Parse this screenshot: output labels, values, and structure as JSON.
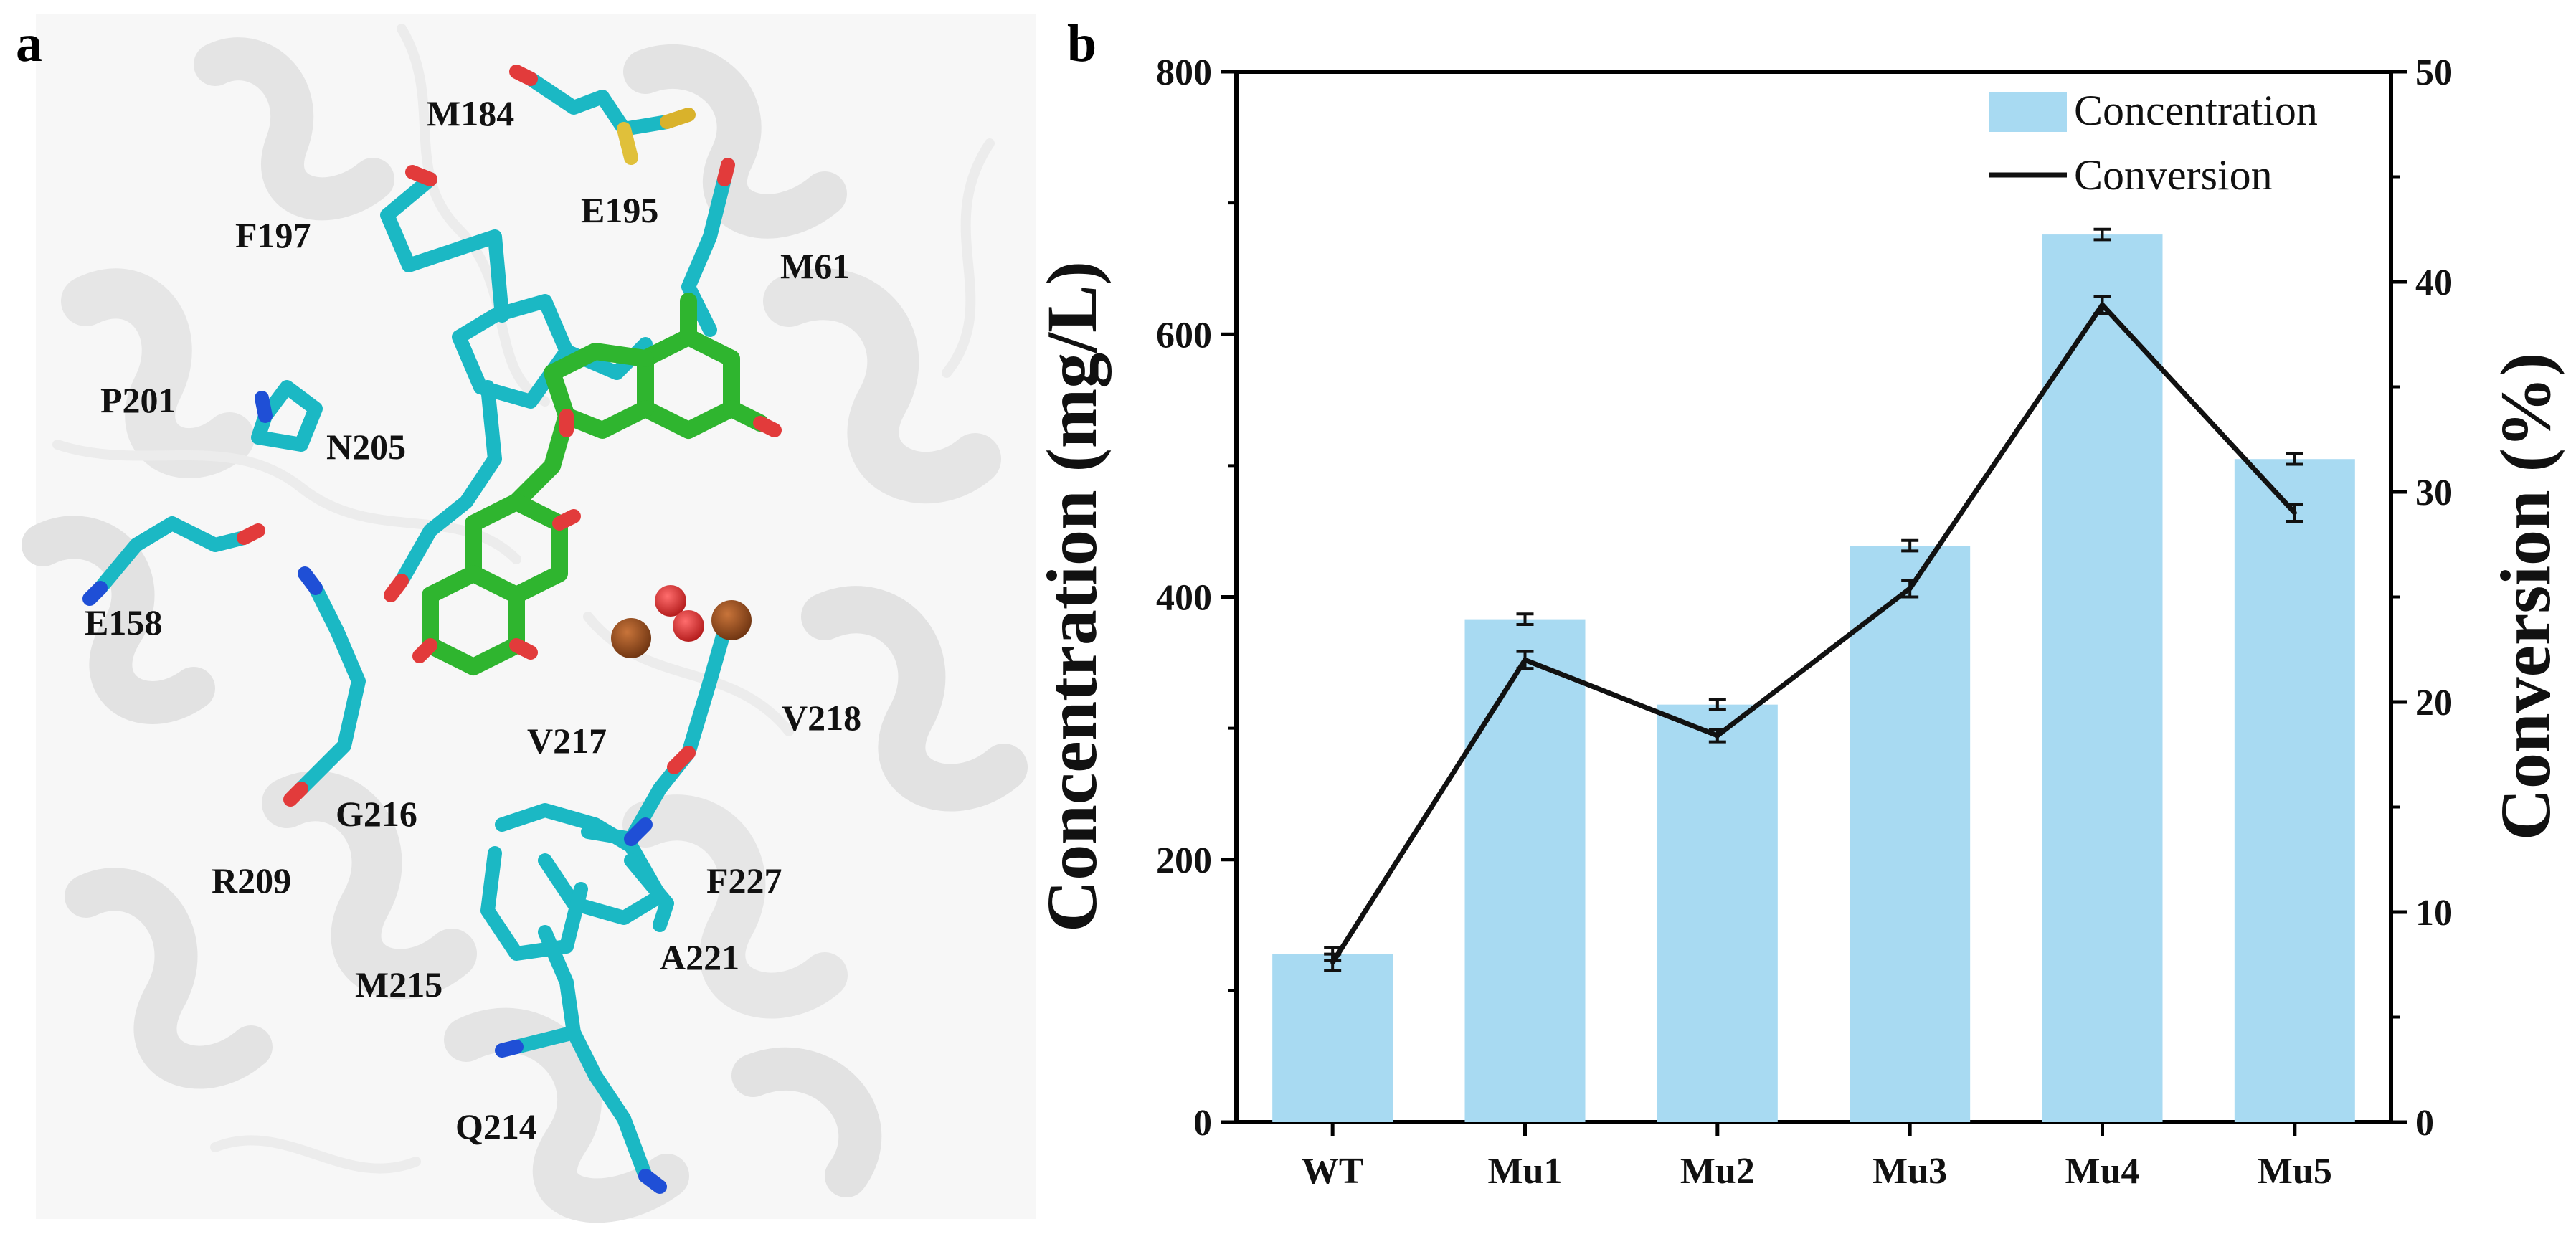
{
  "panel_a": {
    "letter": "a",
    "residues": [
      "M184",
      "E195",
      "F197",
      "M61",
      "P201",
      "N205",
      "E158",
      "V217",
      "V218",
      "G216",
      "R209",
      "F227",
      "A221",
      "M215",
      "Q214"
    ]
  },
  "panel_b": {
    "letter": "b"
  },
  "chart_data": {
    "type": "bar+line",
    "categories": [
      "WT",
      "Mu1",
      "Mu2",
      "Mu3",
      "Mu4",
      "Mu5"
    ],
    "series": [
      {
        "name": "Concentration",
        "type": "bar",
        "axis": "left",
        "values": [
          128,
          383,
          318,
          439,
          676,
          505
        ],
        "errors": [
          5,
          4,
          4,
          4,
          4,
          4
        ],
        "color": "#a8daf2"
      },
      {
        "name": "Conversion",
        "type": "line",
        "axis": "right",
        "values": [
          7.6,
          22.0,
          18.4,
          25.4,
          38.9,
          29.0
        ],
        "errors": [
          0.4,
          0.4,
          0.3,
          0.4,
          0.4,
          0.4
        ],
        "color": "#111111"
      }
    ],
    "ylabel": "Concentration (mg/L)",
    "y2label": "Conversion (%)",
    "ylim": [
      0,
      800
    ],
    "y2lim": [
      0,
      50
    ],
    "yticks": [
      "0",
      "200",
      "400",
      "600",
      "800"
    ],
    "y2ticks": [
      "0",
      "10",
      "20",
      "30",
      "40",
      "50"
    ],
    "legend": [
      "Concentration",
      "Conversion"
    ],
    "legend_position": "top-right"
  }
}
